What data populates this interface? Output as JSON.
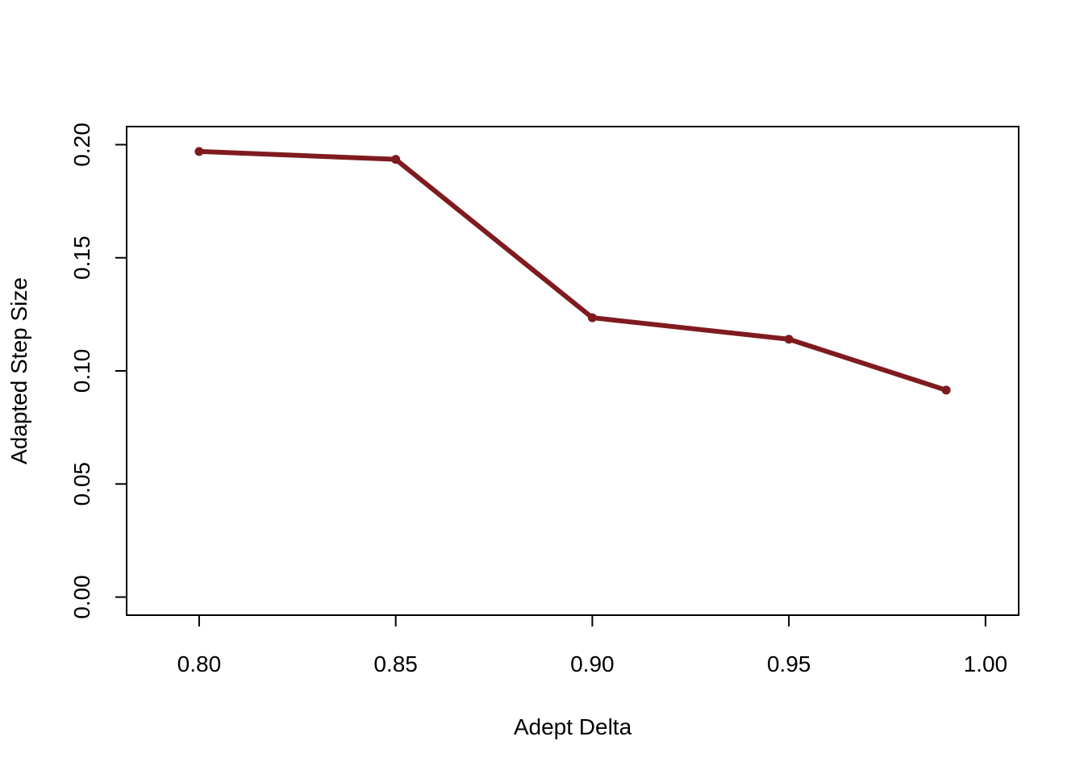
{
  "chart_data": {
    "type": "line",
    "title": "",
    "xlabel": "Adept Delta",
    "ylabel": "Adapted Step Size",
    "x": [
      0.8,
      0.85,
      0.9,
      0.95,
      0.99
    ],
    "series": [
      {
        "values": [
          0.197,
          0.1935,
          0.1235,
          0.114,
          0.0915
        ]
      }
    ],
    "xlim": [
      0.78156,
      1.00844
    ],
    "ylim": [
      -0.008,
      0.208
    ],
    "xticks": [
      0.8,
      0.85,
      0.9,
      0.95,
      1.0
    ],
    "xtick_labels": [
      "0.80",
      "0.85",
      "0.90",
      "0.95",
      "1.00"
    ],
    "yticks": [
      0.0,
      0.05,
      0.1,
      0.15,
      0.2
    ],
    "ytick_labels": [
      "0.00",
      "0.05",
      "0.10",
      "0.15",
      "0.20"
    ],
    "grid": false,
    "legend": "none",
    "markers": true,
    "line_color": "#7f1b1f"
  }
}
